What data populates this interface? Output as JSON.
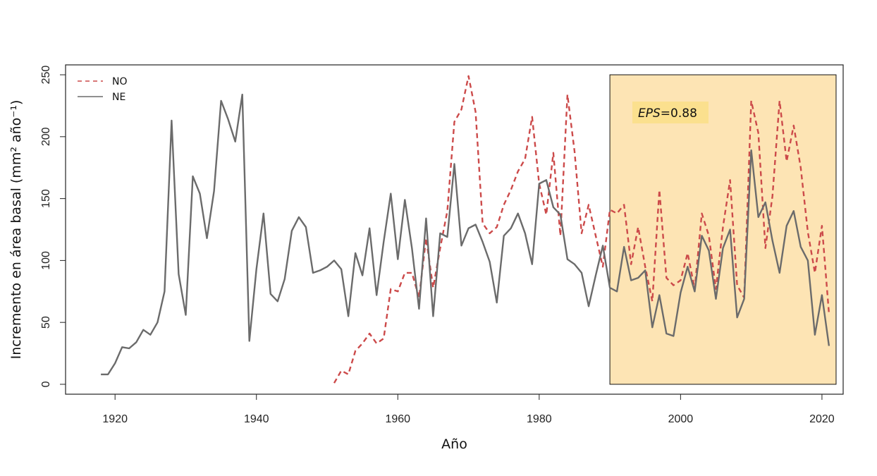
{
  "chart_data": {
    "type": "line",
    "title": "",
    "xlabel": "Año",
    "ylabel": "Incremento en área basal (mm² año⁻¹)",
    "xlim": [
      1913,
      2023
    ],
    "ylim": [
      -8,
      258
    ],
    "x_ticks": [
      1920,
      1940,
      1960,
      1980,
      2000,
      2020
    ],
    "y_ticks": [
      0,
      50,
      100,
      150,
      200,
      250
    ],
    "grid": false,
    "legend": {
      "position": "top-left"
    },
    "highlight": {
      "x_range": [
        1990,
        2022
      ],
      "y_range": [
        0,
        250
      ],
      "color": "#fde4b4",
      "label_italic": "EPS",
      "label_rest": "=0.88",
      "label_bg": "#fbe08e"
    },
    "series": [
      {
        "name": "NO",
        "color": "#cc4a4a",
        "style": "dashed",
        "x": [
          1951,
          1952,
          1953,
          1954,
          1955,
          1956,
          1957,
          1958,
          1959,
          1960,
          1961,
          1962,
          1963,
          1964,
          1965,
          1966,
          1967,
          1968,
          1969,
          1970,
          1971,
          1972,
          1973,
          1974,
          1975,
          1976,
          1977,
          1978,
          1979,
          1980,
          1981,
          1982,
          1983,
          1984,
          1985,
          1986,
          1987,
          1988,
          1989,
          1990,
          1991,
          1992,
          1993,
          1994,
          1995,
          1996,
          1997,
          1998,
          1999,
          2000,
          2001,
          2002,
          2003,
          2004,
          2005,
          2006,
          2007,
          2008,
          2009,
          2010,
          2011,
          2012,
          2013,
          2014,
          2015,
          2016,
          2017,
          2018,
          2019,
          2020,
          2021
        ],
        "values": [
          1,
          11,
          8,
          27,
          33,
          41,
          33,
          37,
          77,
          75,
          90,
          90,
          70,
          118,
          78,
          110,
          140,
          212,
          222,
          249,
          220,
          130,
          122,
          127,
          145,
          157,
          172,
          182,
          216,
          162,
          137,
          187,
          120,
          234,
          188,
          122,
          145,
          120,
          95,
          141,
          138,
          145,
          97,
          127,
          95,
          67,
          157,
          86,
          80,
          84,
          106,
          77,
          138,
          120,
          77,
          127,
          165,
          80,
          70,
          229,
          203,
          110,
          152,
          229,
          180,
          209,
          175,
          123,
          90,
          128,
          57
        ]
      },
      {
        "name": "NE",
        "color": "#6b6b6b",
        "style": "solid",
        "x": [
          1918,
          1919,
          1920,
          1921,
          1922,
          1923,
          1924,
          1925,
          1926,
          1927,
          1928,
          1929,
          1930,
          1931,
          1932,
          1933,
          1934,
          1935,
          1936,
          1937,
          1938,
          1939,
          1940,
          1941,
          1942,
          1943,
          1944,
          1945,
          1946,
          1947,
          1948,
          1949,
          1950,
          1951,
          1952,
          1953,
          1954,
          1955,
          1956,
          1957,
          1958,
          1959,
          1960,
          1961,
          1962,
          1963,
          1964,
          1965,
          1966,
          1967,
          1968,
          1969,
          1970,
          1971,
          1972,
          1973,
          1974,
          1975,
          1976,
          1977,
          1978,
          1979,
          1980,
          1981,
          1982,
          1983,
          1984,
          1985,
          1986,
          1987,
          1988,
          1989,
          1990,
          1991,
          1992,
          1993,
          1994,
          1995,
          1996,
          1997,
          1998,
          1999,
          2000,
          2001,
          2002,
          2003,
          2004,
          2005,
          2006,
          2007,
          2008,
          2009,
          2010,
          2011,
          2012,
          2013,
          2014,
          2015,
          2016,
          2017,
          2018,
          2019,
          2020,
          2021
        ],
        "values": [
          8,
          8,
          17,
          30,
          29,
          34,
          44,
          40,
          50,
          75,
          213,
          89,
          56,
          168,
          154,
          118,
          156,
          229,
          214,
          196,
          234,
          35,
          93,
          138,
          73,
          67,
          85,
          124,
          135,
          127,
          90,
          92,
          95,
          100,
          93,
          55,
          106,
          88,
          126,
          72,
          115,
          154,
          101,
          149,
          110,
          61,
          134,
          55,
          122,
          119,
          178,
          112,
          126,
          129,
          115,
          99,
          66,
          120,
          126,
          138,
          122,
          97,
          162,
          165,
          143,
          137,
          101,
          97,
          90,
          63,
          88,
          112,
          78,
          75,
          111,
          84,
          86,
          92,
          46,
          72,
          41,
          39,
          74,
          95,
          75,
          120,
          108,
          69,
          110,
          125,
          54,
          69,
          189,
          135,
          147,
          116,
          90,
          128,
          140,
          111,
          100,
          40,
          72,
          31
        ]
      }
    ]
  }
}
